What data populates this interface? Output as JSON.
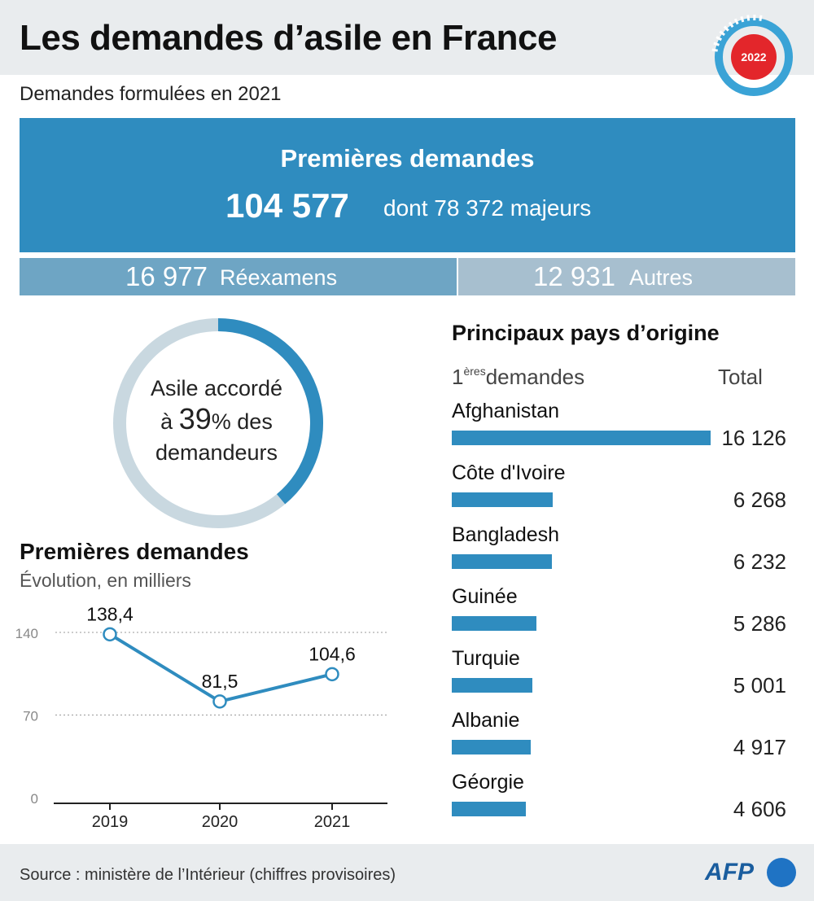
{
  "header": {
    "title": "Les demandes d’asile en France",
    "badge_year": "2022"
  },
  "subtitle": "Demandes formulées en 2021",
  "premieres": {
    "label": "Premières demandes",
    "total": "104 577",
    "detail": "dont 78 372 majeurs"
  },
  "reexamens": {
    "value": "16 977",
    "label": "Réexamens"
  },
  "autres": {
    "value": "12 931",
    "label": "Autres"
  },
  "asile": {
    "line1": "Asile accordé",
    "prefix": "à",
    "pct_num": "39",
    "pct_sign": "%",
    "suffix": "des",
    "line3": "demandeurs",
    "fraction": 0.39
  },
  "evolution": {
    "title": "Premières demandes",
    "subtitle": "Évolution, en milliers"
  },
  "pays": {
    "title": "Principaux pays d’origine",
    "col1_exp": "1",
    "col1_sup": "ères",
    "col1_rest": "demandes",
    "col2": "Total"
  },
  "colors": {
    "blue": "#2f8cbf",
    "ring_track": "#c9d8e0",
    "strip_a": "#6ea5c4",
    "strip_b": "#a7bfcf",
    "header_bg": "#e9ecee",
    "badge_red": "#e3262b",
    "badge_ring": "#3aa3d6"
  },
  "footer": {
    "source": "Source : ministère de l’Intérieur (chiffres provisoires)",
    "logo": "AFP"
  },
  "chart_data": [
    {
      "type": "line",
      "title": "Premières demandes",
      "subtitle": "Évolution, en milliers",
      "x": [
        "2019",
        "2020",
        "2021"
      ],
      "series": [
        {
          "values": [
            138.4,
            81.5,
            104.6
          ],
          "labels": [
            "138,4",
            "81,5",
            "104,6"
          ]
        }
      ],
      "yticks": [
        0,
        70,
        140
      ],
      "ylim": [
        0,
        140
      ],
      "grid": true
    },
    {
      "type": "bar",
      "orientation": "horizontal",
      "title": "Principaux pays d’origine",
      "categories": [
        "Afghanistan",
        "Côte d'Ivoire",
        "Bangladesh",
        "Guinée",
        "Turquie",
        "Albanie",
        "Géorgie"
      ],
      "values": [
        16126,
        6268,
        6232,
        5286,
        5001,
        4917,
        4606
      ],
      "value_labels": [
        "16 126",
        "6 268",
        "6 232",
        "5 286",
        "5 001",
        "4 917",
        "4 606"
      ]
    }
  ]
}
